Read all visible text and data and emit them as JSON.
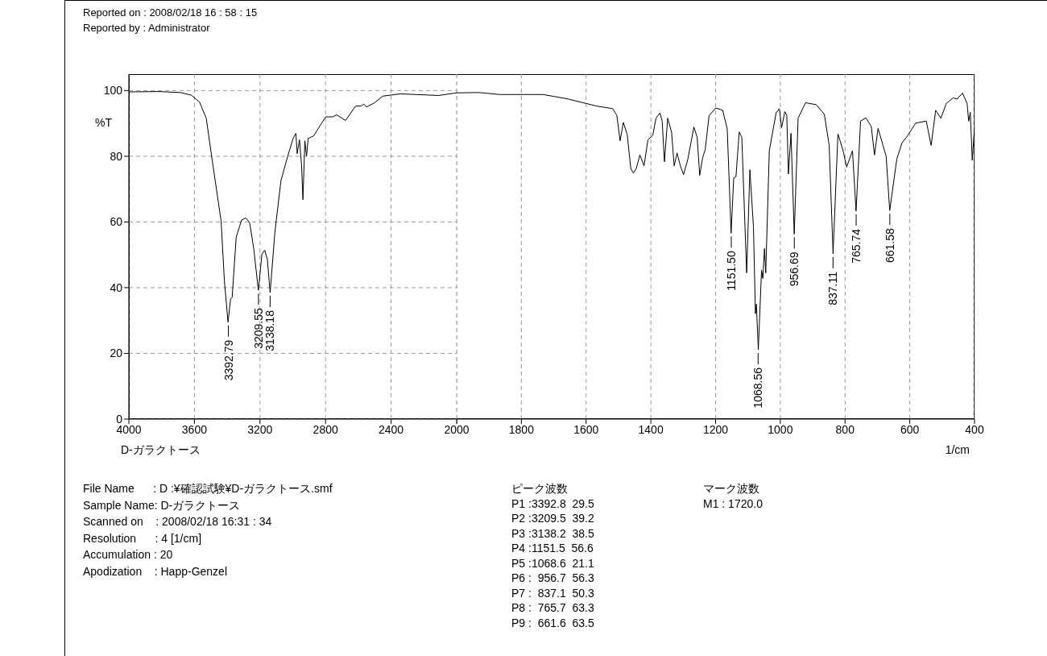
{
  "chart_data": [
    {
      "type": "line",
      "title": "Reported on : 2008/02/18 16 : 58 : 15",
      "subtitle": "Reported by : Administrator",
      "xlabel": "D-ガラクトース",
      "ylabel": "%T",
      "xlim": [
        4000,
        2000
      ],
      "xticks": [
        4000,
        3600,
        3200,
        2800,
        2400,
        2000
      ],
      "ylim": [
        0,
        105
      ],
      "yticks": [
        0,
        20,
        40,
        60,
        80,
        100
      ],
      "grid": true,
      "series": [
        {
          "color": "#000000",
          "x": [
            4000,
            3818,
            3685,
            3619,
            3569,
            3528,
            3495,
            3461,
            3437,
            3417,
            3395,
            3379,
            3370,
            3345,
            3312,
            3287,
            3263,
            3238,
            3210,
            3188,
            3171,
            3155,
            3138,
            3109,
            3072,
            3031,
            2998,
            2981,
            2973,
            2959,
            2946,
            2938,
            2926,
            2916,
            2906,
            2873,
            2799,
            2757,
            2732,
            2678,
            2616,
            2583,
            2566,
            2550,
            2500,
            2451,
            2343,
            2111,
            2000
          ],
          "values": [
            99.6,
            99.7,
            99.4,
            98.6,
            96.5,
            91.6,
            80,
            68.4,
            60.2,
            42,
            29.5,
            36.6,
            37,
            55.4,
            60.6,
            61.2,
            59.8,
            51.9,
            39.2,
            50.2,
            51.4,
            48.6,
            38.5,
            56.9,
            72.6,
            80,
            85.4,
            87,
            80.8,
            85,
            77.1,
            66.8,
            84.7,
            80,
            85.4,
            86.2,
            92,
            92,
            92.6,
            90.9,
            95.3,
            95.3,
            95.9,
            95,
            96.3,
            98.3,
            99,
            98.5,
            99.3
          ]
        }
      ],
      "annotations": [
        {
          "text": "3392.79",
          "x": 3392.8,
          "y": 29.5
        },
        {
          "text": "3209.55",
          "x": 3209.5,
          "y": 39.2
        },
        {
          "text": "3138.18",
          "x": 3138.2,
          "y": 38.5
        },
        "File Name      : D :¥確認試験¥D-ガラクトース.smf",
        "Sample Name: D-ガラクトース",
        "Scanned on    : 2008/02/18 16:31 : 34",
        "Resolution      : 4 [1/cm]",
        "Accumulation : 20",
        "Apodization    : Happ-Genzel"
      ]
    },
    {
      "type": "line",
      "xlabel": "1/cm",
      "xlim": [
        2000,
        400
      ],
      "xticks": [
        {
          "value": 2000,
          "label": null
        },
        1800,
        1600,
        1400,
        1200,
        1000,
        800,
        600,
        400
      ],
      "ylim": [
        0,
        105
      ],
      "yticks": [
        0,
        20,
        40,
        60,
        80,
        100
      ],
      "grid": true,
      "tick_labels": "x",
      "series": [
        {
          "color": "#000000",
          "x": [
            2000,
            1932,
            1866,
            1733,
            1659,
            1568,
            1518,
            1505,
            1495,
            1485,
            1473,
            1462,
            1454,
            1445,
            1434,
            1421,
            1409,
            1394,
            1384,
            1372,
            1365,
            1358,
            1348,
            1336,
            1328,
            1319,
            1309,
            1299,
            1286,
            1267,
            1257,
            1249,
            1240,
            1232,
            1220,
            1199,
            1178,
            1164,
            1152,
            1144,
            1137,
            1127,
            1119,
            1104,
            1094,
            1083,
            1077,
            1074,
            1068,
            1058,
            1054,
            1049,
            1045,
            1034,
            1013,
            1003,
            996,
            986,
            980,
            975,
            967,
            957,
            945,
            922,
            889,
            864,
            849,
            837,
            822,
            806,
            795,
            777,
            766,
            752,
            736,
            719,
            709,
            698,
            673,
            662,
            640,
            624,
            607,
            582,
            549,
            534,
            520,
            504,
            487,
            466,
            454,
            437,
            423,
            418,
            413,
            407,
            400
          ],
          "values": [
            99.3,
            99.4,
            98.8,
            98.8,
            97.5,
            95.3,
            94.5,
            92.4,
            84.7,
            90.3,
            86.6,
            76.3,
            74.9,
            76.3,
            80.4,
            77.1,
            85,
            86.4,
            91.6,
            93.2,
            90.7,
            78.3,
            91.6,
            87.4,
            77.1,
            81,
            77.1,
            74.4,
            79,
            88.9,
            85.8,
            74.2,
            79.6,
            82.1,
            92.4,
            94.7,
            94,
            88.3,
            56.6,
            73.4,
            73.8,
            87.4,
            85.8,
            44.5,
            75.9,
            58.5,
            32.1,
            35,
            21.1,
            45.3,
            42.8,
            51.9,
            44.5,
            81.7,
            93.2,
            94.5,
            88.7,
            93.6,
            92.4,
            74.6,
            87,
            56.3,
            91.6,
            96.3,
            95.7,
            92.8,
            83.3,
            50.3,
            86.8,
            81.7,
            76.7,
            81.7,
            63.3,
            90.7,
            91.7,
            89.1,
            80.4,
            88.5,
            80,
            63.5,
            79.2,
            84.1,
            86.2,
            90.1,
            90.7,
            83.3,
            94,
            91.6,
            96.1,
            97.8,
            97.4,
            99.2,
            96.1,
            90.7,
            93.4,
            78.8,
            88.7
          ]
        }
      ],
      "annotations": [
        {
          "text": "1151.50",
          "x": 1151.5,
          "y": 56.6
        },
        {
          "text": "1068.56",
          "x": 1068.6,
          "y": 21.1
        },
        {
          "text": "956.69",
          "x": 956.7,
          "y": 56.3
        },
        {
          "text": "837.11",
          "x": 837.1,
          "y": 50.3
        },
        {
          "text": "765.74",
          "x": 765.7,
          "y": 63.3
        },
        {
          "text": "661.58",
          "x": 661.6,
          "y": 63.5
        },
        "ピーク波数",
        "P1 :3392.8  29.5",
        "P2 :3209.5  39.2",
        "P3 :3138.2  38.5",
        "P4 :1151.5  56.6",
        "P5 :1068.6  21.1",
        "P6 :  956.7  56.3",
        "P7 :  837.1  50.3",
        "P8 :  765.7  63.3",
        "P9 :  661.6  63.5",
        "マーク波数",
        "M1 : 1720.0"
      ]
    }
  ]
}
